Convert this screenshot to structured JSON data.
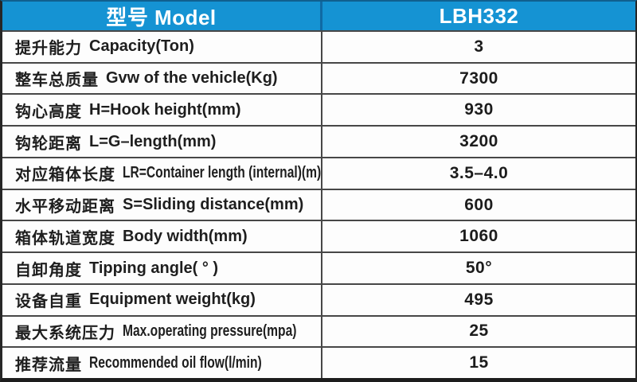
{
  "title": "LBH332 hook lift specification table",
  "colors": {
    "header_bg": "#1593d3",
    "header_divider": "#0f6aa4",
    "header_text": "#ffffff",
    "grid_border": "#474747",
    "body_text": "#1e1e1e"
  },
  "chart_data": {
    "type": "table",
    "columns": [
      "型号 Model",
      "LBH332"
    ],
    "rows": [
      {
        "label_cn": "提升能力",
        "label_en": "Capacity(Ton)",
        "value": "3"
      },
      {
        "label_cn": "整车总质量",
        "label_en": "Gvw of the vehicle(Kg)",
        "value": "7300"
      },
      {
        "label_cn": "钩心高度",
        "label_en": "H=Hook height(mm)",
        "value": "930"
      },
      {
        "label_cn": "钩轮距离",
        "label_en": "L=G–length(mm)",
        "value": "3200"
      },
      {
        "label_cn": "对应箱体长度",
        "label_en": "LR=Container length (internal)(m)",
        "value": "3.5–4.0"
      },
      {
        "label_cn": "水平移动距离",
        "label_en": "S=Sliding distance(mm)",
        "value": "600"
      },
      {
        "label_cn": "箱体轨道宽度",
        "label_en": "Body width(mm)",
        "value": "1060"
      },
      {
        "label_cn": "自卸角度",
        "label_en": "Tipping angle( ° )",
        "value": "50°"
      },
      {
        "label_cn": "设备自重",
        "label_en": "Equipment weight(kg)",
        "value": "495"
      },
      {
        "label_cn": "最大系统压力",
        "label_en": "Max.operating pressure(mpa)",
        "value": "25"
      },
      {
        "label_cn": "推荐流量",
        "label_en": "Recommended oil flow(l/min)",
        "value": "15"
      }
    ]
  }
}
